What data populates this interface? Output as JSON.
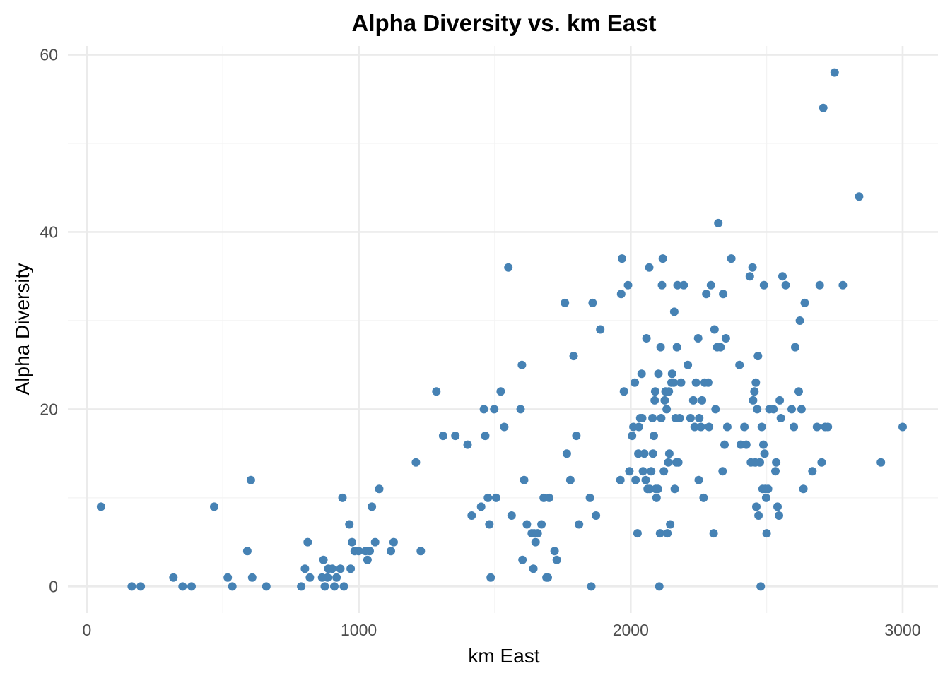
{
  "chart_data": {
    "type": "scatter",
    "title": "Alpha Diversity vs. km East",
    "xlabel": "km East",
    "ylabel": "Alpha Diversity",
    "xlim": [
      -70,
      3130
    ],
    "ylim": [
      -3,
      61
    ],
    "x_ticks": [
      0,
      1000,
      2000,
      3000
    ],
    "x_tick_labels": [
      "0",
      "1000",
      "2000",
      "3000"
    ],
    "y_ticks": [
      0,
      20,
      40,
      60
    ],
    "y_tick_labels": [
      "0",
      "20",
      "40",
      "60"
    ],
    "x_minor": [
      500,
      1500,
      2500
    ],
    "y_minor": [
      10,
      30,
      50
    ],
    "point_color": "#4682B4",
    "points": [
      [
        52,
        9
      ],
      [
        165,
        0
      ],
      [
        198,
        0
      ],
      [
        318,
        1
      ],
      [
        352,
        0
      ],
      [
        385,
        0
      ],
      [
        468,
        9
      ],
      [
        518,
        1
      ],
      [
        535,
        0
      ],
      [
        590,
        4
      ],
      [
        603,
        12
      ],
      [
        608,
        1
      ],
      [
        660,
        0
      ],
      [
        788,
        0
      ],
      [
        802,
        2
      ],
      [
        812,
        5
      ],
      [
        820,
        1
      ],
      [
        865,
        1
      ],
      [
        870,
        3
      ],
      [
        875,
        0
      ],
      [
        885,
        1
      ],
      [
        888,
        2
      ],
      [
        902,
        2
      ],
      [
        910,
        0
      ],
      [
        918,
        1
      ],
      [
        932,
        2
      ],
      [
        940,
        10
      ],
      [
        945,
        0
      ],
      [
        965,
        7
      ],
      [
        970,
        2
      ],
      [
        975,
        5
      ],
      [
        985,
        4
      ],
      [
        1000,
        4
      ],
      [
        1025,
        4
      ],
      [
        1032,
        3
      ],
      [
        1040,
        4
      ],
      [
        1048,
        9
      ],
      [
        1060,
        5
      ],
      [
        1075,
        11
      ],
      [
        1118,
        4
      ],
      [
        1128,
        5
      ],
      [
        1210,
        14
      ],
      [
        1228,
        4
      ],
      [
        1285,
        22
      ],
      [
        1310,
        17
      ],
      [
        1355,
        17
      ],
      [
        1400,
        16
      ],
      [
        1415,
        8
      ],
      [
        1450,
        9
      ],
      [
        1460,
        20
      ],
      [
        1465,
        17
      ],
      [
        1475,
        10
      ],
      [
        1480,
        7
      ],
      [
        1485,
        1
      ],
      [
        1498,
        20
      ],
      [
        1505,
        10
      ],
      [
        1522,
        22
      ],
      [
        1535,
        18
      ],
      [
        1550,
        36
      ],
      [
        1562,
        8
      ],
      [
        1595,
        20
      ],
      [
        1600,
        25
      ],
      [
        1602,
        3
      ],
      [
        1608,
        12
      ],
      [
        1618,
        7
      ],
      [
        1636,
        6
      ],
      [
        1642,
        2
      ],
      [
        1645,
        6
      ],
      [
        1650,
        5
      ],
      [
        1658,
        6
      ],
      [
        1672,
        7
      ],
      [
        1680,
        10
      ],
      [
        1690,
        1
      ],
      [
        1695,
        1
      ],
      [
        1700,
        10
      ],
      [
        1720,
        4
      ],
      [
        1728,
        3
      ],
      [
        1758,
        32
      ],
      [
        1765,
        15
      ],
      [
        1778,
        12
      ],
      [
        1790,
        26
      ],
      [
        1800,
        17
      ],
      [
        1810,
        7
      ],
      [
        1850,
        10
      ],
      [
        1855,
        0
      ],
      [
        1860,
        32
      ],
      [
        1872,
        8
      ],
      [
        1888,
        29
      ],
      [
        1962,
        12
      ],
      [
        1965,
        33
      ],
      [
        1968,
        37
      ],
      [
        1975,
        22
      ],
      [
        1990,
        34
      ],
      [
        1995,
        13
      ],
      [
        2005,
        17
      ],
      [
        2010,
        18
      ],
      [
        2015,
        23
      ],
      [
        2018,
        12
      ],
      [
        2025,
        6
      ],
      [
        2028,
        15
      ],
      [
        2030,
        18
      ],
      [
        2035,
        19
      ],
      [
        2040,
        24
      ],
      [
        2042,
        19
      ],
      [
        2045,
        13
      ],
      [
        2050,
        15
      ],
      [
        2055,
        12
      ],
      [
        2058,
        28
      ],
      [
        2062,
        11
      ],
      [
        2068,
        36
      ],
      [
        2070,
        11
      ],
      [
        2075,
        13
      ],
      [
        2080,
        19
      ],
      [
        2082,
        15
      ],
      [
        2085,
        17
      ],
      [
        2088,
        21
      ],
      [
        2090,
        22
      ],
      [
        2092,
        11
      ],
      [
        2095,
        10
      ],
      [
        2100,
        11
      ],
      [
        2102,
        24
      ],
      [
        2105,
        0
      ],
      [
        2108,
        6
      ],
      [
        2110,
        27
      ],
      [
        2112,
        19
      ],
      [
        2115,
        34
      ],
      [
        2118,
        37
      ],
      [
        2122,
        13
      ],
      [
        2125,
        21
      ],
      [
        2128,
        22
      ],
      [
        2132,
        20
      ],
      [
        2135,
        6
      ],
      [
        2138,
        14
      ],
      [
        2140,
        22
      ],
      [
        2142,
        15
      ],
      [
        2145,
        7
      ],
      [
        2150,
        23
      ],
      [
        2152,
        24
      ],
      [
        2158,
        23
      ],
      [
        2160,
        31
      ],
      [
        2162,
        11
      ],
      [
        2165,
        19
      ],
      [
        2168,
        14
      ],
      [
        2170,
        27
      ],
      [
        2172,
        34
      ],
      [
        2175,
        14
      ],
      [
        2180,
        19
      ],
      [
        2185,
        23
      ],
      [
        2195,
        34
      ],
      [
        2210,
        25
      ],
      [
        2220,
        19
      ],
      [
        2230,
        21
      ],
      [
        2235,
        18
      ],
      [
        2240,
        23
      ],
      [
        2248,
        28
      ],
      [
        2250,
        12
      ],
      [
        2252,
        19
      ],
      [
        2258,
        18
      ],
      [
        2262,
        21
      ],
      [
        2268,
        10
      ],
      [
        2272,
        23
      ],
      [
        2278,
        33
      ],
      [
        2285,
        23
      ],
      [
        2288,
        18
      ],
      [
        2295,
        34
      ],
      [
        2305,
        6
      ],
      [
        2308,
        29
      ],
      [
        2312,
        20
      ],
      [
        2318,
        27
      ],
      [
        2322,
        41
      ],
      [
        2330,
        27
      ],
      [
        2338,
        13
      ],
      [
        2340,
        33
      ],
      [
        2345,
        16
      ],
      [
        2350,
        28
      ],
      [
        2355,
        18
      ],
      [
        2370,
        37
      ],
      [
        2400,
        25
      ],
      [
        2405,
        16
      ],
      [
        2418,
        18
      ],
      [
        2425,
        16
      ],
      [
        2438,
        35
      ],
      [
        2442,
        14
      ],
      [
        2448,
        36
      ],
      [
        2450,
        21
      ],
      [
        2455,
        22
      ],
      [
        2458,
        14
      ],
      [
        2460,
        23
      ],
      [
        2462,
        9
      ],
      [
        2465,
        20
      ],
      [
        2468,
        26
      ],
      [
        2470,
        8
      ],
      [
        2475,
        14
      ],
      [
        2478,
        0
      ],
      [
        2482,
        18
      ],
      [
        2485,
        11
      ],
      [
        2488,
        16
      ],
      [
        2490,
        34
      ],
      [
        2492,
        15
      ],
      [
        2495,
        11
      ],
      [
        2498,
        10
      ],
      [
        2500,
        6
      ],
      [
        2505,
        11
      ],
      [
        2510,
        20
      ],
      [
        2525,
        20
      ],
      [
        2532,
        13
      ],
      [
        2535,
        14
      ],
      [
        2540,
        9
      ],
      [
        2545,
        8
      ],
      [
        2548,
        21
      ],
      [
        2552,
        19
      ],
      [
        2558,
        35
      ],
      [
        2570,
        34
      ],
      [
        2592,
        20
      ],
      [
        2600,
        18
      ],
      [
        2605,
        27
      ],
      [
        2618,
        22
      ],
      [
        2622,
        30
      ],
      [
        2628,
        20
      ],
      [
        2635,
        11
      ],
      [
        2640,
        32
      ],
      [
        2668,
        13
      ],
      [
        2685,
        18
      ],
      [
        2695,
        34
      ],
      [
        2702,
        14
      ],
      [
        2708,
        54
      ],
      [
        2715,
        18
      ],
      [
        2725,
        18
      ],
      [
        2750,
        58
      ],
      [
        2780,
        34
      ],
      [
        2840,
        44
      ],
      [
        2920,
        14
      ],
      [
        3000,
        18
      ]
    ]
  }
}
